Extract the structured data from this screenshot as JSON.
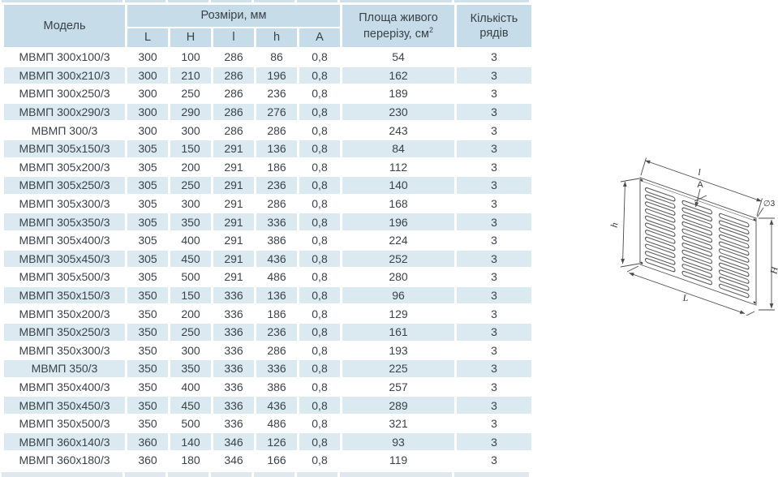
{
  "table": {
    "header": {
      "model": "Модель",
      "dimensions_group": "Розміри, мм",
      "dimension_cols": [
        "L",
        "H",
        "l",
        "h",
        "A"
      ],
      "area_line1": "Площа живого",
      "area_line2": "перерізу, см",
      "area_sup": "2",
      "rows_count": "Кількість рядів"
    },
    "rows": [
      {
        "model": "МВМП 300х100/3",
        "L": "300",
        "H": "100",
        "l": "286",
        "h": "86",
        "A": "0,8",
        "area": "54",
        "rows": "3"
      },
      {
        "model": "МВМП 300х210/3",
        "L": "300",
        "H": "210",
        "l": "286",
        "h": "196",
        "A": "0,8",
        "area": "162",
        "rows": "3"
      },
      {
        "model": "МВМП 300х250/3",
        "L": "300",
        "H": "250",
        "l": "286",
        "h": "236",
        "A": "0,8",
        "area": "189",
        "rows": "3"
      },
      {
        "model": "МВМП 300х290/3",
        "L": "300",
        "H": "290",
        "l": "286",
        "h": "276",
        "A": "0,8",
        "area": "230",
        "rows": "3"
      },
      {
        "model": "МВМП 300/3",
        "L": "300",
        "H": "300",
        "l": "286",
        "h": "286",
        "A": "0,8",
        "area": "243",
        "rows": "3"
      },
      {
        "model": "МВМП 305х150/3",
        "L": "305",
        "H": "150",
        "l": "291",
        "h": "136",
        "A": "0,8",
        "area": "84",
        "rows": "3"
      },
      {
        "model": "МВМП 305х200/3",
        "L": "305",
        "H": "200",
        "l": "291",
        "h": "186",
        "A": "0,8",
        "area": "112",
        "rows": "3"
      },
      {
        "model": "МВМП 305х250/3",
        "L": "305",
        "H": "250",
        "l": "291",
        "h": "236",
        "A": "0,8",
        "area": "140",
        "rows": "3"
      },
      {
        "model": "МВМП 305х300/3",
        "L": "305",
        "H": "300",
        "l": "291",
        "h": "286",
        "A": "0,8",
        "area": "168",
        "rows": "3"
      },
      {
        "model": "МВМП 305х350/3",
        "L": "305",
        "H": "350",
        "l": "291",
        "h": "336",
        "A": "0,8",
        "area": "196",
        "rows": "3"
      },
      {
        "model": "МВМП 305х400/3",
        "L": "305",
        "H": "400",
        "l": "291",
        "h": "386",
        "A": "0,8",
        "area": "224",
        "rows": "3"
      },
      {
        "model": "МВМП 305х450/3",
        "L": "305",
        "H": "450",
        "l": "291",
        "h": "436",
        "A": "0,8",
        "area": "252",
        "rows": "3"
      },
      {
        "model": "МВМП 305х500/3",
        "L": "305",
        "H": "500",
        "l": "291",
        "h": "486",
        "A": "0,8",
        "area": "280",
        "rows": "3"
      },
      {
        "model": "МВМП 350х150/3",
        "L": "350",
        "H": "150",
        "l": "336",
        "h": "136",
        "A": "0,8",
        "area": "96",
        "rows": "3"
      },
      {
        "model": "МВМП 350х200/3",
        "L": "350",
        "H": "200",
        "l": "336",
        "h": "186",
        "A": "0,8",
        "area": "129",
        "rows": "3"
      },
      {
        "model": "МВМП 350х250/3",
        "L": "350",
        "H": "250",
        "l": "336",
        "h": "236",
        "A": "0,8",
        "area": "161",
        "rows": "3"
      },
      {
        "model": "МВМП 350х300/3",
        "L": "350",
        "H": "300",
        "l": "336",
        "h": "286",
        "A": "0,8",
        "area": "193",
        "rows": "3"
      },
      {
        "model": "МВМП 350/3",
        "L": "350",
        "H": "350",
        "l": "336",
        "h": "336",
        "A": "0,8",
        "area": "225",
        "rows": "3"
      },
      {
        "model": "МВМП 350х400/3",
        "L": "350",
        "H": "400",
        "l": "336",
        "h": "386",
        "A": "0,8",
        "area": "257",
        "rows": "3"
      },
      {
        "model": "МВМП 350х450/3",
        "L": "350",
        "H": "450",
        "l": "336",
        "h": "436",
        "A": "0,8",
        "area": "289",
        "rows": "3"
      },
      {
        "model": "МВМП 350х500/3",
        "L": "350",
        "H": "500",
        "l": "336",
        "h": "486",
        "A": "0,8",
        "area": "321",
        "rows": "3"
      },
      {
        "model": "МВМП 360х140/3",
        "L": "360",
        "H": "140",
        "l": "346",
        "h": "126",
        "A": "0,8",
        "area": "93",
        "rows": "3"
      },
      {
        "model": "МВМП 360х180/3",
        "L": "360",
        "H": "180",
        "l": "346",
        "h": "166",
        "A": "0,8",
        "area": "119",
        "rows": "3"
      }
    ]
  },
  "drawing": {
    "labels": {
      "top": "l",
      "pitch": "A",
      "left": "h",
      "right": "H",
      "bottom": "L",
      "hole": "∅3"
    }
  },
  "colors": {
    "header_bg": "#c6dde9",
    "row_alt_bg": "#dbe9f1",
    "text": "#3b4249",
    "drawing_stroke": "#4a4a4a"
  }
}
